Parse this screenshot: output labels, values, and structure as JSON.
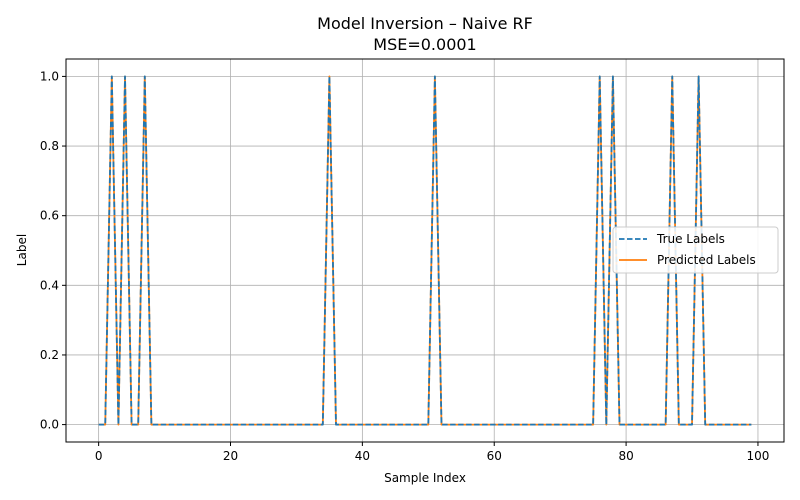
{
  "chart_data": {
    "type": "line",
    "title": "Model Inversion – Naive RF",
    "subtitle": "MSE=0.0001",
    "xlabel": "Sample Index",
    "ylabel": "Label",
    "xlim": [
      -4.95,
      103.95
    ],
    "ylim": [
      -0.05,
      1.05
    ],
    "xticks": [
      0,
      20,
      40,
      60,
      80,
      100
    ],
    "yticks": [
      0.0,
      0.2,
      0.4,
      0.6,
      0.8,
      1.0
    ],
    "xtick_labels": [
      "0",
      "20",
      "40",
      "60",
      "80",
      "100"
    ],
    "ytick_labels": [
      "0.0",
      "0.2",
      "0.4",
      "0.6",
      "0.8",
      "1.0"
    ],
    "grid": true,
    "legend_position": "center-right",
    "x_range": [
      0,
      99
    ],
    "positive_indices": [
      2,
      4,
      7,
      35,
      51,
      76,
      78,
      87,
      91
    ],
    "series": [
      {
        "name": "True Labels",
        "color": "#1f77b4",
        "style": "dashed"
      },
      {
        "name": "Predicted Labels",
        "color": "#ff7f0e",
        "style": "solid"
      }
    ]
  }
}
